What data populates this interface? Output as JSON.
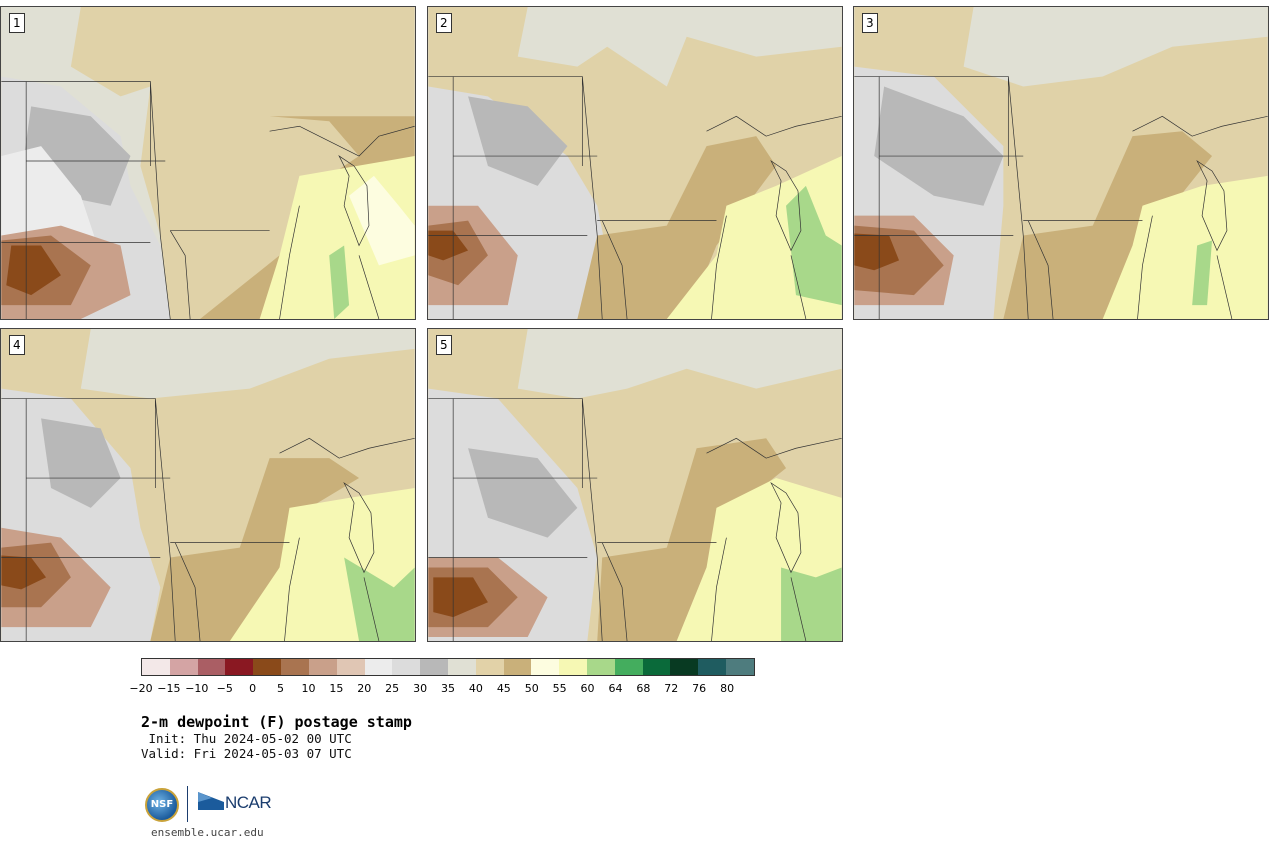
{
  "panels": [
    {
      "label": "1"
    },
    {
      "label": "2"
    },
    {
      "label": "3"
    },
    {
      "label": "4"
    },
    {
      "label": "5"
    }
  ],
  "colorbar": {
    "colors": [
      "#f3e8e8",
      "#d4a4a4",
      "#aa5e64",
      "#8a1822",
      "#8a4a1a",
      "#a97450",
      "#c9a08a",
      "#e0c6b4",
      "#ececec",
      "#dcdcdc",
      "#b8b8b8",
      "#e0e0d4",
      "#e2d2a8",
      "#c9b07a",
      "#fdfde0",
      "#f6f8b4",
      "#a8d88a",
      "#44ad5e",
      "#0a6a3a",
      "#083a22",
      "#1f5c60",
      "#4e7c7e"
    ],
    "tick_labels": [
      "−20",
      "−15",
      "−10",
      "−5",
      "0",
      "5",
      "10",
      "15",
      "20",
      "25",
      "30",
      "35",
      "40",
      "45",
      "50",
      "55",
      "60",
      "64",
      "68",
      "72",
      "76",
      "80"
    ]
  },
  "title": "2-m dewpoint (F) postage stamp",
  "init_text": " Init: Thu 2024-05-02 00 UTC",
  "valid_text": "Valid: Fri 2024-05-03 07 UTC",
  "logo": {
    "nsf_text": "NSF",
    "ncar_text": "NCAR"
  },
  "url": "ensemble.ucar.edu"
}
